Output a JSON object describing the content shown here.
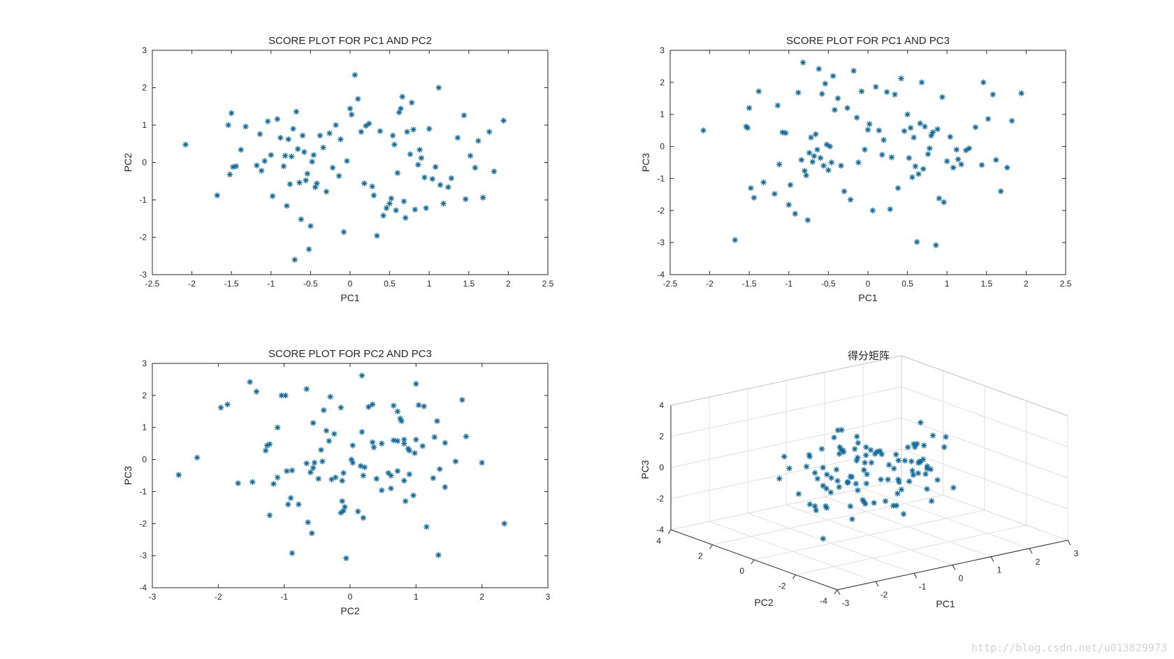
{
  "colors": {
    "marker": "#0f6a9c",
    "axis": "#262626",
    "grid": "#e0e0e0",
    "background": "#ffffff"
  },
  "watermark": "http://blog.csdn.net/u013829973",
  "chart_data": {
    "type": "scatter",
    "marker": "asterisk",
    "series_columns": [
      "PC1",
      "PC2",
      "PC3"
    ],
    "samples": [
      [
        -2.08,
        0.48,
        0.5
      ],
      [
        -1.68,
        -0.88,
        -2.92
      ],
      [
        -1.54,
        1.0,
        0.62
      ],
      [
        -1.52,
        -0.32,
        0.58
      ],
      [
        -1.5,
        1.32,
        1.2
      ],
      [
        -1.48,
        -0.12,
        -1.3
      ],
      [
        -1.44,
        -0.1,
        -1.6
      ],
      [
        -1.38,
        0.34,
        1.72
      ],
      [
        -1.32,
        0.96,
        -1.12
      ],
      [
        -1.18,
        -0.08,
        -1.48
      ],
      [
        -1.14,
        0.76,
        1.28
      ],
      [
        -1.12,
        -0.22,
        -0.56
      ],
      [
        -1.08,
        0.04,
        0.44
      ],
      [
        -1.04,
        1.1,
        0.42
      ],
      [
        -1.0,
        0.2,
        -1.82
      ],
      [
        -0.98,
        -0.9,
        -1.2
      ],
      [
        -0.92,
        1.16,
        -2.1
      ],
      [
        -0.88,
        0.66,
        1.68
      ],
      [
        -0.84,
        -0.1,
        -0.42
      ],
      [
        -0.82,
        0.18,
        2.62
      ],
      [
        -0.8,
        -1.16,
        -0.76
      ],
      [
        -0.78,
        0.62,
        -0.9
      ],
      [
        -0.76,
        -0.58,
        -2.3
      ],
      [
        -0.74,
        0.16,
        -0.2
      ],
      [
        -0.72,
        0.9,
        0.28
      ],
      [
        -0.7,
        -2.6,
        -0.48
      ],
      [
        -0.68,
        1.36,
        -0.3
      ],
      [
        -0.66,
        0.36,
        0.38
      ],
      [
        -0.64,
        -0.54,
        -0.1
      ],
      [
        -0.62,
        -1.52,
        2.42
      ],
      [
        -0.6,
        0.72,
        -0.36
      ],
      [
        -0.58,
        0.28,
        1.64
      ],
      [
        -0.56,
        -0.48,
        -0.6
      ],
      [
        -0.54,
        -0.3,
        1.96
      ],
      [
        -0.52,
        -2.32,
        0.06
      ],
      [
        -0.5,
        -1.7,
        -0.74
      ],
      [
        -0.48,
        0.02,
        0.0
      ],
      [
        -0.46,
        0.2,
        -0.5
      ],
      [
        -0.44,
        -0.66,
        2.2
      ],
      [
        -0.42,
        -0.56,
        1.14
      ],
      [
        -0.38,
        0.72,
        1.5
      ],
      [
        -0.34,
        0.4,
        -0.6
      ],
      [
        -0.3,
        -0.78,
        -1.4
      ],
      [
        -0.26,
        0.78,
        1.2
      ],
      [
        -0.22,
        -0.14,
        -1.66
      ],
      [
        -0.18,
        1.0,
        2.36
      ],
      [
        -0.14,
        -0.36,
        0.9
      ],
      [
        -0.12,
        0.62,
        -0.5
      ],
      [
        -0.08,
        -1.86,
        1.72
      ],
      [
        -0.04,
        0.04,
        -0.1
      ],
      [
        0.0,
        1.44,
        0.52
      ],
      [
        0.02,
        1.28,
        0.7
      ],
      [
        0.06,
        2.34,
        -2.0
      ],
      [
        0.1,
        1.7,
        1.86
      ],
      [
        0.14,
        0.82,
        0.5
      ],
      [
        0.18,
        -0.56,
        -0.26
      ],
      [
        0.2,
        0.98,
        0.2
      ],
      [
        0.24,
        1.04,
        1.7
      ],
      [
        0.28,
        -0.64,
        -1.96
      ],
      [
        0.3,
        -0.88,
        -0.34
      ],
      [
        0.34,
        -1.96,
        1.62
      ],
      [
        0.38,
        0.84,
        -1.3
      ],
      [
        0.42,
        -1.42,
        2.12
      ],
      [
        0.46,
        -1.22,
        0.48
      ],
      [
        0.5,
        -1.1,
        1.0
      ],
      [
        0.52,
        -0.96,
        -0.36
      ],
      [
        0.54,
        0.72,
        0.58
      ],
      [
        0.56,
        0.48,
        -0.96
      ],
      [
        0.58,
        -1.28,
        0.28
      ],
      [
        0.6,
        -0.28,
        -0.62
      ],
      [
        0.62,
        1.34,
        -2.98
      ],
      [
        0.64,
        1.44,
        -0.86
      ],
      [
        0.66,
        1.76,
        0.72
      ],
      [
        0.68,
        -1.04,
        2.0
      ],
      [
        0.7,
        -1.48,
        -0.7
      ],
      [
        0.72,
        0.82,
        0.62
      ],
      [
        0.76,
        0.22,
        -0.24
      ],
      [
        0.78,
        1.6,
        -0.06
      ],
      [
        0.8,
        0.88,
        0.34
      ],
      [
        0.82,
        -1.26,
        0.44
      ],
      [
        0.86,
        -0.06,
        -3.08
      ],
      [
        0.88,
        0.34,
        0.54
      ],
      [
        0.9,
        0.12,
        -1.62
      ],
      [
        0.94,
        -0.4,
        1.54
      ],
      [
        0.96,
        -1.22,
        -1.74
      ],
      [
        1.0,
        0.9,
        -0.46
      ],
      [
        1.04,
        -0.44,
        0.3
      ],
      [
        1.08,
        -0.12,
        -0.66
      ],
      [
        1.12,
        2.0,
        -0.1
      ],
      [
        1.14,
        -0.6,
        -0.4
      ],
      [
        1.18,
        -1.1,
        -0.56
      ],
      [
        1.24,
        -0.66,
        -0.12
      ],
      [
        1.28,
        -0.42,
        -0.06
      ],
      [
        1.36,
        0.66,
        0.6
      ],
      [
        1.44,
        1.26,
        -0.58
      ],
      [
        1.46,
        -0.98,
        2.0
      ],
      [
        1.52,
        0.18,
        0.86
      ],
      [
        1.58,
        -0.14,
        1.62
      ],
      [
        1.62,
        0.58,
        -0.42
      ],
      [
        1.68,
        -0.94,
        -1.4
      ],
      [
        1.76,
        0.82,
        -0.66
      ],
      [
        1.82,
        -0.24,
        0.8
      ],
      [
        1.94,
        1.12,
        1.66
      ]
    ],
    "plots": [
      {
        "id": "pc1-pc2",
        "kind": "2d",
        "title": "SCORE PLOT FOR PC1 AND PC2",
        "xcol": 0,
        "ycol": 1,
        "xlabel": "PC1",
        "ylabel": "PC2",
        "xlim": [
          -2.5,
          2.5
        ],
        "ylim": [
          -3,
          3
        ],
        "xticks": [
          -2.5,
          -2,
          -1.5,
          -1,
          -0.5,
          0,
          0.5,
          1,
          1.5,
          2,
          2.5
        ],
        "yticks": [
          -3,
          -2,
          -1,
          0,
          1,
          2,
          3
        ]
      },
      {
        "id": "pc1-pc3",
        "kind": "2d",
        "title": "SCORE PLOT FOR PC1 AND PC3",
        "xcol": 0,
        "ycol": 2,
        "xlabel": "PC1",
        "ylabel": "PC3",
        "xlim": [
          -2.5,
          2.5
        ],
        "ylim": [
          -4,
          3
        ],
        "xticks": [
          -2.5,
          -2,
          -1.5,
          -1,
          -0.5,
          0,
          0.5,
          1,
          1.5,
          2,
          2.5
        ],
        "yticks": [
          -4,
          -3,
          -2,
          -1,
          0,
          1,
          2,
          3
        ]
      },
      {
        "id": "pc2-pc3",
        "kind": "2d",
        "title": "SCORE PLOT FOR PC2 AND PC3",
        "xcol": 1,
        "ycol": 2,
        "xlabel": "PC2",
        "ylabel": "PC3",
        "xlim": [
          -3,
          3
        ],
        "ylim": [
          -4,
          3
        ],
        "xticks": [
          -3,
          -2,
          -1,
          0,
          1,
          2,
          3
        ],
        "yticks": [
          -4,
          -3,
          -2,
          -1,
          0,
          1,
          2,
          3
        ]
      },
      {
        "id": "pc-3d",
        "kind": "3d",
        "title": "得分矩阵",
        "xlabel": "PC1",
        "ylabel": "PC2",
        "zlabel": "PC3",
        "xlim": [
          -3,
          3
        ],
        "ylim": [
          -4,
          4
        ],
        "zlim": [
          -4,
          4
        ],
        "xticks": [
          -3,
          -2,
          -1,
          0,
          1,
          2,
          3
        ],
        "yticks": [
          -4,
          -2,
          0,
          2,
          4
        ],
        "zticks": [
          -4,
          -2,
          0,
          2,
          4
        ]
      }
    ]
  }
}
